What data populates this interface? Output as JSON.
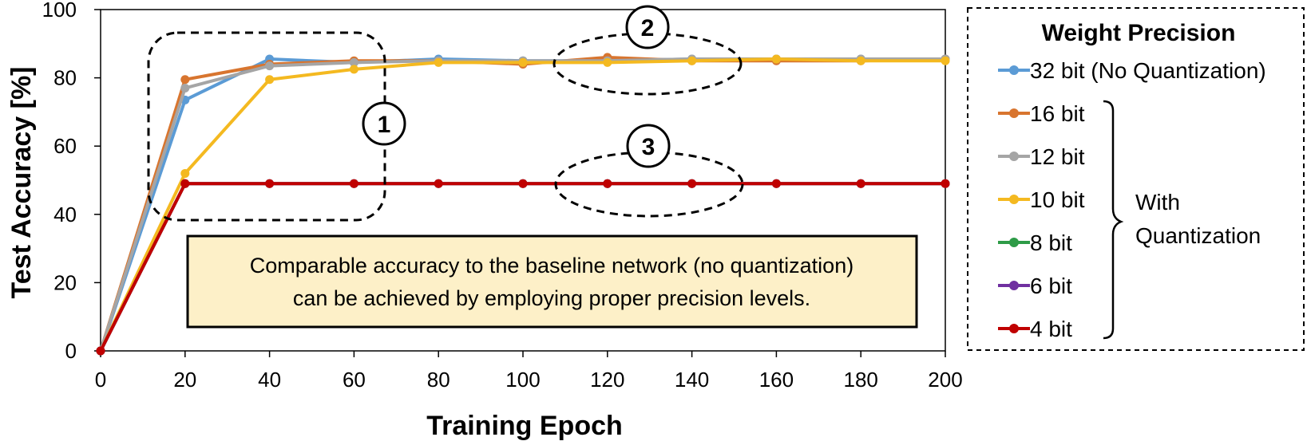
{
  "chart_data": {
    "type": "line",
    "xlabel": "Training Epoch",
    "ylabel": "Test Accuracy [%]",
    "xlim": [
      0,
      200
    ],
    "ylim": [
      0,
      100
    ],
    "x_ticks": [
      "0",
      "20",
      "40",
      "60",
      "80",
      "100",
      "120",
      "140",
      "160",
      "180",
      "200"
    ],
    "y_ticks": [
      "0",
      "20",
      "40",
      "60",
      "80",
      "100"
    ],
    "x": [
      0,
      20,
      40,
      60,
      80,
      100,
      120,
      140,
      160,
      180,
      200
    ],
    "grid": false,
    "legend_position": "right",
    "legend_title": "Weight Precision",
    "series": [
      {
        "name": "32 bit (No Quantization)",
        "color": "#5b9bd5",
        "values": [
          0,
          73.5,
          85.5,
          84.5,
          85.5,
          85,
          85,
          85.5,
          85.5,
          85.5,
          85.5
        ]
      },
      {
        "name": "16 bit",
        "color": "#d8752f",
        "values": [
          0,
          79.5,
          84,
          85,
          85,
          84,
          86,
          85,
          85,
          85,
          85.5
        ]
      },
      {
        "name": "12 bit",
        "color": "#a5a5a5",
        "values": [
          0,
          77,
          83.5,
          84.5,
          85,
          85,
          85,
          85.5,
          85.5,
          85.5,
          85.5
        ]
      },
      {
        "name": "10 bit",
        "color": "#f4b920",
        "values": [
          0,
          52,
          79.5,
          82.5,
          84.5,
          84.5,
          84.5,
          85,
          85.5,
          85,
          85
        ]
      },
      {
        "name": "8 bit",
        "color": "#2e9b47",
        "values": [
          0,
          49,
          49,
          49,
          49,
          49,
          49,
          49,
          49,
          49,
          49
        ]
      },
      {
        "name": "6 bit",
        "color": "#7030a0",
        "values": [
          0,
          49,
          49,
          49,
          49,
          49,
          49,
          49,
          49,
          49,
          49
        ]
      },
      {
        "name": "4 bit",
        "color": "#c00000",
        "values": [
          0,
          49,
          49,
          49,
          49,
          49,
          49,
          49,
          49,
          49,
          49
        ]
      }
    ],
    "brace_label": "With Quantization",
    "annotations": [
      "1",
      "2",
      "3"
    ],
    "note": "Comparable accuracy to the baseline network (no quantization) can be achieved by employing proper precision levels.",
    "note_lines": [
      "Comparable accuracy to the baseline network (no quantization)",
      "can be achieved by employing proper precision levels."
    ],
    "note_fill": "#fdf0c8"
  }
}
